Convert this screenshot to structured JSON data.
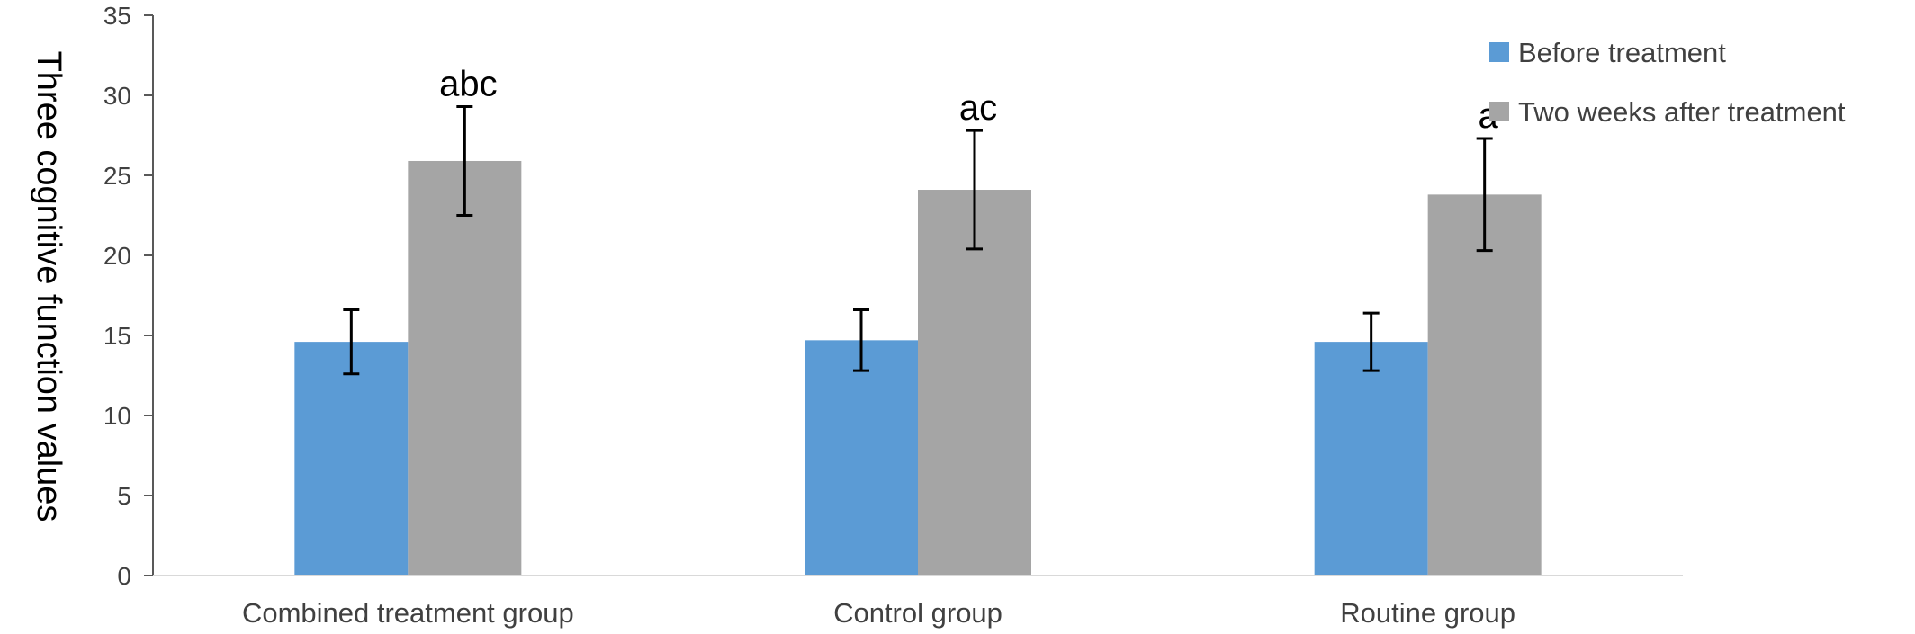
{
  "chart_data": {
    "type": "bar",
    "title": "",
    "xlabel": "",
    "ylabel": "Three cognitive function values",
    "ylim": [
      0,
      35
    ],
    "yticks": [
      0,
      5,
      10,
      15,
      20,
      25,
      30,
      35
    ],
    "categories": [
      "Combined treatment group",
      "Control group",
      "Routine group"
    ],
    "series": [
      {
        "name": "Before treatment",
        "color": "#5B9BD5",
        "values": [
          14.6,
          14.7,
          14.6
        ],
        "error": [
          2.0,
          1.9,
          1.8
        ]
      },
      {
        "name": "Two weeks after treatment",
        "color": "#A5A5A5",
        "values": [
          25.9,
          24.1,
          23.8
        ],
        "error": [
          3.4,
          3.7,
          3.5
        ]
      }
    ],
    "annotations": [
      "abc",
      "ac",
      "a"
    ],
    "legend_position": "top-right",
    "grid": false
  }
}
